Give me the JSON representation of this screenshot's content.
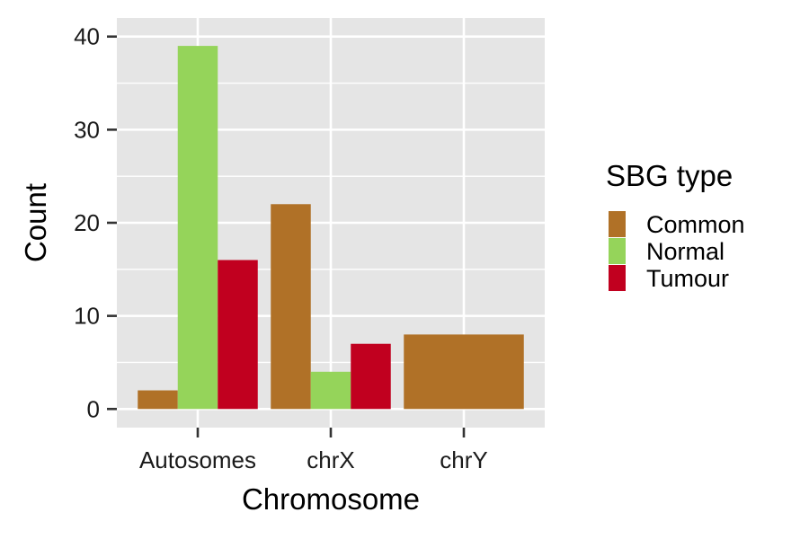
{
  "chart_data": {
    "type": "bar",
    "subtype": "grouped (dodge)",
    "xlabel": "Chromosome",
    "ylabel": "Count",
    "categories": [
      "Autosomes",
      "chrX",
      "chrY"
    ],
    "ylim": [
      -2,
      42
    ],
    "yticks": [
      0,
      10,
      20,
      30,
      40
    ],
    "grid": true,
    "legend": {
      "title": "SBG type",
      "position": "right"
    },
    "series": [
      {
        "name": "Common",
        "color": "#b07127",
        "values": [
          2,
          22,
          8
        ]
      },
      {
        "name": "Normal",
        "color": "#95d45a",
        "values": [
          39,
          4,
          null
        ]
      },
      {
        "name": "Tumour",
        "color": "#c1001f",
        "values": [
          16,
          7,
          null
        ]
      }
    ],
    "colors": {
      "panel_background": "#e5e5e5",
      "grid_line": "#ffffff",
      "axis_tick": "#333333"
    }
  }
}
